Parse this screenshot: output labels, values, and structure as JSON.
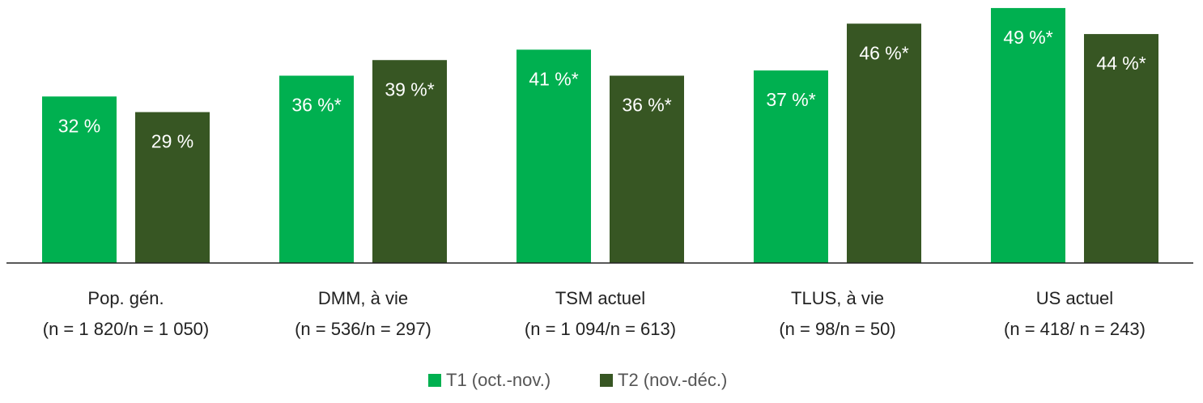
{
  "chart_data": {
    "type": "bar",
    "categories": [
      "Pop. gén.",
      "DMM, à vie",
      "TSM actuel",
      "TLUS, à vie",
      "US actuel"
    ],
    "category_notes": [
      "(n = 1 820/n = 1 050)",
      "(n = 536/n = 297)",
      "(n = 1 094/n = 613)",
      "(n = 98/n = 50)",
      "(n = 418/ n = 243)"
    ],
    "series": [
      {
        "name": "T1 (oct.-nov.)",
        "color": "#00b050",
        "values": [
          32,
          36,
          41,
          37,
          49
        ],
        "value_labels": [
          "32 %",
          "36 %*",
          "41 %*",
          "37 %*",
          "49 %*"
        ]
      },
      {
        "name": "T2 (nov.-déc.)",
        "color": "#375623",
        "values": [
          29,
          39,
          36,
          46,
          44
        ],
        "value_labels": [
          "29 %",
          "39 %*",
          "36 %*",
          "46 %*",
          "44 %*"
        ]
      }
    ],
    "ylim": [
      0,
      50
    ],
    "legend": "bottom"
  }
}
